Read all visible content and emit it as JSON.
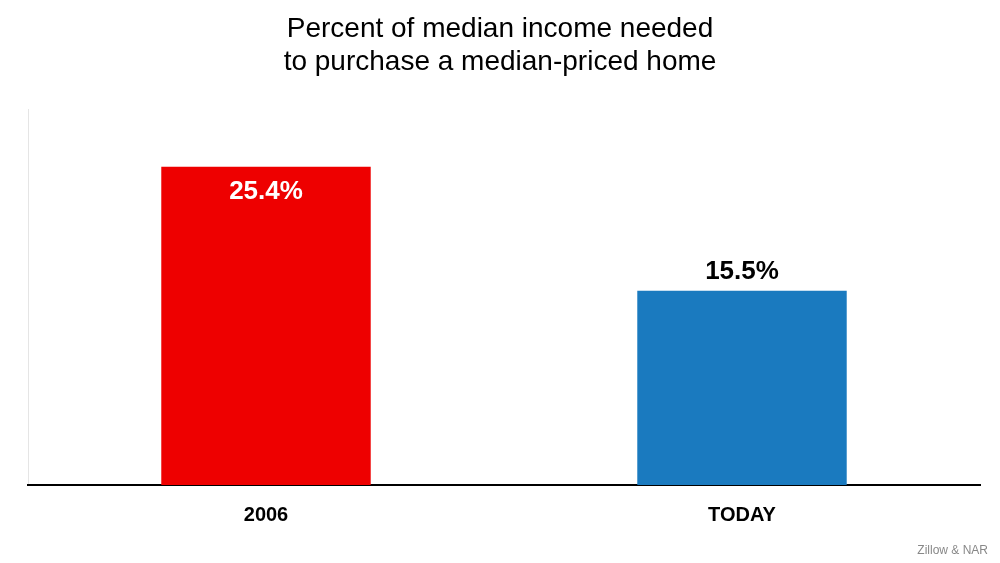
{
  "chart_data": {
    "type": "bar",
    "title": "Percent of median income needed\nto purchase a median-priced home",
    "categories": [
      "2006",
      "TODAY"
    ],
    "values": [
      25.4,
      15.5
    ],
    "value_labels": [
      "25.4%",
      "15.5%"
    ],
    "colors": [
      "#ee0000",
      "#1a7abf"
    ],
    "ylim": [
      0,
      30
    ],
    "grid": false,
    "legend": false,
    "data_labels": true,
    "tick_labels": "x",
    "annotations": [
      "Zillow & NAR"
    ]
  }
}
